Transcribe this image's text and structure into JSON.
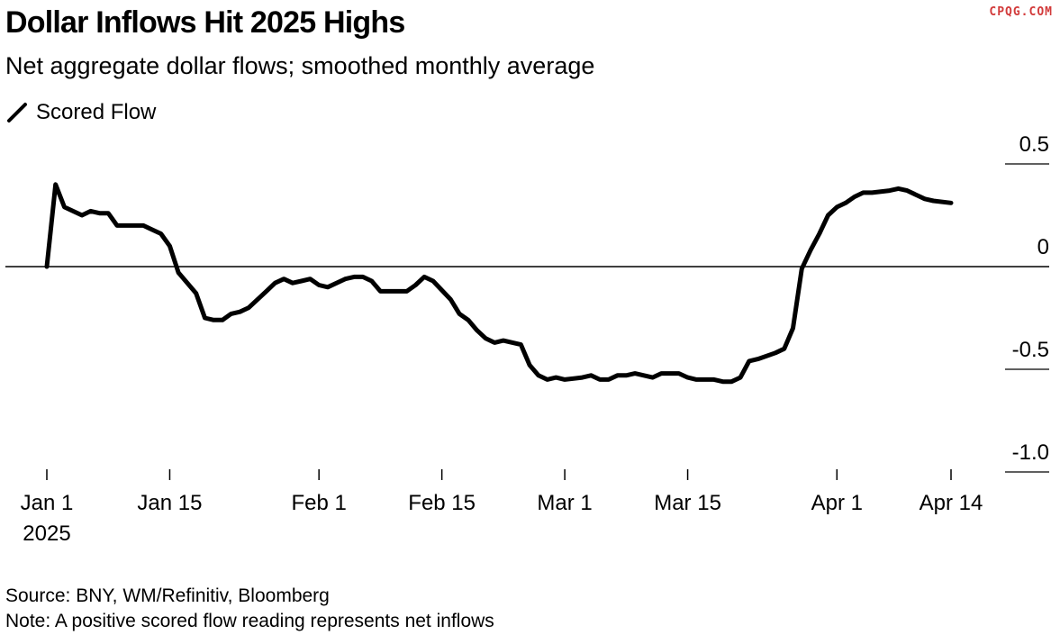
{
  "header": {
    "title": "Dollar Inflows Hit 2025 Highs",
    "subtitle": "Net aggregate dollar flows; smoothed monthly average",
    "watermark": "CPQG.COM"
  },
  "footer": {
    "source": "Source: BNY, WM/Refinitiv, Bloomberg",
    "note": "Note: A positive scored flow reading represents net inflows"
  },
  "colors": {
    "line": "#000000",
    "zero_line": "#000000",
    "watermark": "#d23a3a"
  },
  "chart_data": {
    "type": "line",
    "title": "Dollar Inflows Hit 2025 Highs",
    "subtitle": "Net aggregate dollar flows; smoothed monthly average",
    "legend": "top-left",
    "grid": false,
    "ylim": [
      -1.0,
      0.5
    ],
    "xlim": [
      "2025-01-01",
      "2025-04-14"
    ],
    "y_ticks": [
      {
        "value": 0.5,
        "label": "0.5"
      },
      {
        "value": 0,
        "label": "0"
      },
      {
        "value": -0.5,
        "label": "-0.5"
      },
      {
        "value": -1.0,
        "label": "-1.0"
      }
    ],
    "x_ticks": [
      {
        "date": "2025-01-01",
        "label": "Jan 1",
        "sublabel": "2025"
      },
      {
        "date": "2025-01-15",
        "label": "Jan 15"
      },
      {
        "date": "2025-02-01",
        "label": "Feb 1"
      },
      {
        "date": "2025-02-15",
        "label": "Feb 15"
      },
      {
        "date": "2025-03-01",
        "label": "Mar 1"
      },
      {
        "date": "2025-03-15",
        "label": "Mar 15"
      },
      {
        "date": "2025-04-01",
        "label": "Apr 1"
      },
      {
        "date": "2025-04-14",
        "label": "Apr 14"
      }
    ],
    "series": [
      {
        "name": "Scored Flow",
        "x": [
          "2025-01-01",
          "2025-01-02",
          "2025-01-03",
          "2025-01-05",
          "2025-01-06",
          "2025-01-07",
          "2025-01-08",
          "2025-01-09",
          "2025-01-10",
          "2025-01-12",
          "2025-01-13",
          "2025-01-14",
          "2025-01-15",
          "2025-01-16",
          "2025-01-18",
          "2025-01-19",
          "2025-01-20",
          "2025-01-21",
          "2025-01-22",
          "2025-01-23",
          "2025-01-24",
          "2025-01-26",
          "2025-01-27",
          "2025-01-28",
          "2025-01-29",
          "2025-01-30",
          "2025-01-31",
          "2025-02-01",
          "2025-02-02",
          "2025-02-04",
          "2025-02-05",
          "2025-02-06",
          "2025-02-07",
          "2025-02-08",
          "2025-02-09",
          "2025-02-11",
          "2025-02-12",
          "2025-02-13",
          "2025-02-14",
          "2025-02-16",
          "2025-02-17",
          "2025-02-18",
          "2025-02-19",
          "2025-02-20",
          "2025-02-21",
          "2025-02-22",
          "2025-02-24",
          "2025-02-25",
          "2025-02-26",
          "2025-02-27",
          "2025-02-28",
          "2025-03-01",
          "2025-03-03",
          "2025-03-04",
          "2025-03-05",
          "2025-03-06",
          "2025-03-07",
          "2025-03-08",
          "2025-03-09",
          "2025-03-11",
          "2025-03-12",
          "2025-03-13",
          "2025-03-14",
          "2025-03-15",
          "2025-03-16",
          "2025-03-18",
          "2025-03-19",
          "2025-03-20",
          "2025-03-21",
          "2025-03-22",
          "2025-03-23",
          "2025-03-25",
          "2025-03-26",
          "2025-03-27",
          "2025-03-28",
          "2025-03-29",
          "2025-03-30",
          "2025-03-31",
          "2025-04-01",
          "2025-04-02",
          "2025-04-03",
          "2025-04-04",
          "2025-04-05",
          "2025-04-07",
          "2025-04-08",
          "2025-04-09",
          "2025-04-10",
          "2025-04-11",
          "2025-04-12",
          "2025-04-14"
        ],
        "values": [
          0.0,
          0.4,
          0.29,
          0.25,
          0.27,
          0.26,
          0.26,
          0.2,
          0.2,
          0.2,
          0.18,
          0.16,
          0.1,
          -0.03,
          -0.13,
          -0.25,
          -0.26,
          -0.26,
          -0.23,
          -0.22,
          -0.2,
          -0.12,
          -0.08,
          -0.06,
          -0.08,
          -0.07,
          -0.06,
          -0.09,
          -0.1,
          -0.06,
          -0.05,
          -0.05,
          -0.07,
          -0.12,
          -0.12,
          -0.12,
          -0.09,
          -0.05,
          -0.07,
          -0.16,
          -0.23,
          -0.26,
          -0.31,
          -0.35,
          -0.37,
          -0.36,
          -0.38,
          -0.48,
          -0.53,
          -0.55,
          -0.54,
          -0.55,
          -0.54,
          -0.53,
          -0.55,
          -0.55,
          -0.53,
          -0.53,
          -0.52,
          -0.54,
          -0.52,
          -0.52,
          -0.52,
          -0.54,
          -0.55,
          -0.55,
          -0.56,
          -0.56,
          -0.54,
          -0.46,
          -0.45,
          -0.42,
          -0.4,
          -0.3,
          -0.01,
          0.08,
          0.16,
          0.25,
          0.29,
          0.31,
          0.34,
          0.36,
          0.36,
          0.37,
          0.38,
          0.37,
          0.35,
          0.33,
          0.32,
          0.31
        ]
      }
    ]
  }
}
